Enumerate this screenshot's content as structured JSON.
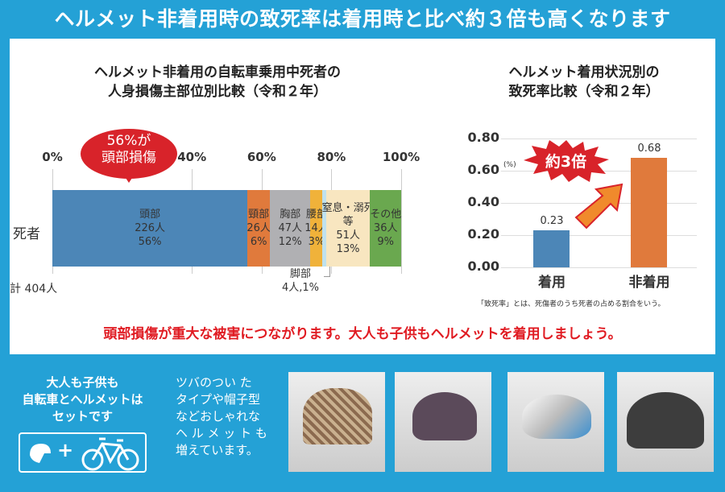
{
  "header": {
    "title": "ヘルメット非着用時の致死率は着用時と比べ約３倍も高くなります"
  },
  "chart_data": [
    {
      "type": "bar",
      "orientation": "horizontal-stacked",
      "title": "ヘルメット非着用の自転車乗用中死者の\n人身損傷主部位別比較（令和２年）",
      "xticks": [
        "0%",
        "40%",
        "60%",
        "80%",
        "100%"
      ],
      "xtick_values": [
        0,
        40,
        60,
        80,
        100
      ],
      "xlim": [
        0,
        100
      ],
      "row_label": "死者",
      "total_label": "計 404人",
      "callout": "56%が\n頭部損傷",
      "segments": [
        {
          "name": "頭部",
          "count": 226,
          "count_label": "226人",
          "percent_label": "56%",
          "color": "#4c86b7"
        },
        {
          "name": "頸部",
          "count": 26,
          "count_label": "26人",
          "percent_label": "6%",
          "color": "#e07a3c"
        },
        {
          "name": "胸部",
          "count": 47,
          "count_label": "47人",
          "percent_label": "12%",
          "color": "#b0b0b3"
        },
        {
          "name": "腰部",
          "count": 14,
          "count_label": "14人",
          "percent_label": "3%",
          "color": "#f0b23a"
        },
        {
          "name": "脚部",
          "count": 4,
          "count_label": "4人,1%",
          "percent_label": "",
          "color": "#bfe1ee"
        },
        {
          "name": "窒息・溺死\n等",
          "count": 51,
          "count_label": "51人",
          "percent_label": "13%",
          "color": "#f8e6c0"
        },
        {
          "name": "その他",
          "count": 36,
          "count_label": "36人",
          "percent_label": "9%",
          "color": "#6aa84f"
        }
      ]
    },
    {
      "type": "bar",
      "title": "ヘルメット着用状況別の\n致死率比較（令和２年）",
      "unit": "(%)",
      "categories": [
        "着用",
        "非着用"
      ],
      "values": [
        0.23,
        0.68
      ],
      "value_labels": [
        "0.23",
        "0.68"
      ],
      "colors": [
        "#4c86b7",
        "#e07a3c"
      ],
      "ylim": [
        0,
        0.8
      ],
      "yticks": [
        "0.00",
        "0.20",
        "0.40",
        "0.60",
        "0.80"
      ],
      "ytick_values": [
        0,
        0.2,
        0.4,
        0.6,
        0.8
      ],
      "callout": "約3倍",
      "note": "「致死率」とは、死傷者のうち死者の占める割合をいう。"
    }
  ],
  "message": "頭部損傷が重大な被害につながります。大人も子供もヘルメットを着用しましょう。",
  "bottom": {
    "set_text": "大人も子供も\n自転車とヘルメットは\nセットです",
    "plus": "+",
    "style_text": "ツバのつい た\nタイプや帽子型\nなどおしゃれな\nヘ ル メ ッ ト も\n増えています。"
  }
}
